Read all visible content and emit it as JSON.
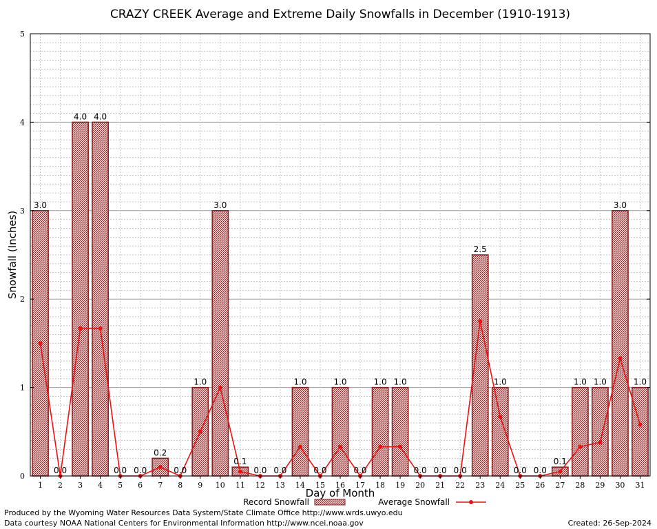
{
  "chart_data": {
    "type": "bar",
    "title": "CRAZY CREEK Average and Extreme Daily Snowfalls in December (1910-1913)",
    "xlabel": "Day of Month",
    "ylabel": "Snowfall (Inches)",
    "ylim": [
      0,
      5
    ],
    "yticks": [
      "0",
      "1",
      "2",
      "3",
      "4",
      "5"
    ],
    "grid": true,
    "legend_placement": "bottom-center",
    "categories": [
      "1",
      "2",
      "3",
      "4",
      "5",
      "6",
      "7",
      "8",
      "9",
      "10",
      "11",
      "12",
      "13",
      "14",
      "15",
      "16",
      "17",
      "18",
      "19",
      "20",
      "21",
      "22",
      "23",
      "24",
      "25",
      "26",
      "27",
      "28",
      "29",
      "30",
      "31"
    ],
    "series": [
      {
        "name": "Record Snowfall",
        "kind": "bar",
        "color": "#8b1a1a",
        "values": [
          3.0,
          0.0,
          4.0,
          4.0,
          0.0,
          0.0,
          0.2,
          0.0,
          1.0,
          3.0,
          0.1,
          0.0,
          0.0,
          1.0,
          0.0,
          1.0,
          0.0,
          1.0,
          1.0,
          0.0,
          0.0,
          0.0,
          2.5,
          1.0,
          0.0,
          0.0,
          0.1,
          1.0,
          1.0,
          3.0,
          1.0
        ],
        "labels": [
          "3.0",
          "0.0",
          "4.0",
          "4.0",
          "0.0",
          "0.0",
          "0.2",
          "0.0",
          "1.0",
          "3.0",
          "0.1",
          "0.0",
          "0.0",
          "1.0",
          "0.0",
          "1.0",
          "0.0",
          "1.0",
          "1.0",
          "0.0",
          "0.0",
          "0.0",
          "2.5",
          "1.0",
          "0.0",
          "0.0",
          "0.1",
          "1.0",
          "1.0",
          "3.0",
          "1.0"
        ]
      },
      {
        "name": "Average Snowfall",
        "kind": "line",
        "color": "#ee1111",
        "values": [
          1.5,
          0.0,
          1.67,
          1.67,
          0.0,
          0.0,
          0.1,
          0.0,
          0.5,
          1.0,
          0.05,
          0.0,
          0.0,
          0.33,
          0.0,
          0.33,
          0.0,
          0.33,
          0.33,
          0.0,
          0.0,
          0.0,
          1.75,
          0.67,
          0.0,
          0.0,
          0.05,
          0.33,
          0.38,
          1.33,
          0.58
        ]
      }
    ]
  },
  "footer": {
    "produced_by": "Produced by the Wyoming Water Resources Data System/State Climate Office http://www.wrds.uwyo.edu",
    "courtesy": "Data courtesy NOAA National Centers for Environmental Information http://www.ncei.noaa.gov",
    "created": "Created:  26-Sep-2024"
  }
}
